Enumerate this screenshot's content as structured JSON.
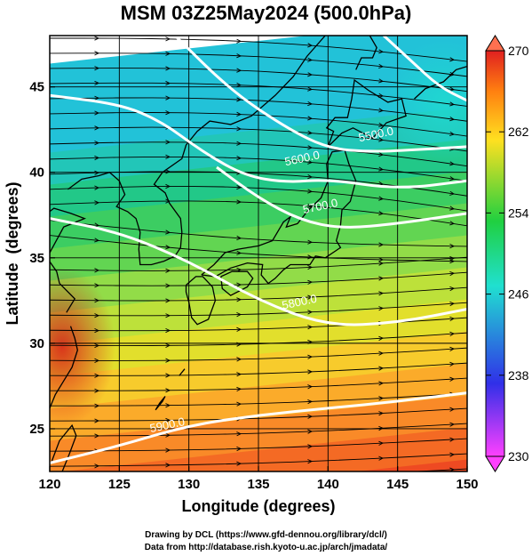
{
  "title": "MSM 03Z25May2024 (500.0hPa)",
  "credits": {
    "line1": "Drawing by DCL (https://www.gfd-dennou.org/library/dcl/)",
    "line2": "Data from http://database.rish.kyoto-u.ac.jp/arch/jmadata/"
  },
  "chart_data": {
    "type": "heatmap",
    "xlabel": "Longitude (degrees)",
    "ylabel": "Latitude  (degrees)",
    "xlim": [
      120,
      150
    ],
    "ylim": [
      22.5,
      48
    ],
    "x_ticks": [
      120,
      125,
      130,
      135,
      140,
      145,
      150
    ],
    "y_ticks": [
      25,
      30,
      35,
      40,
      45
    ],
    "grid": true,
    "colorbar": {
      "min": 230,
      "max": 270,
      "ticks": [
        230,
        238,
        246,
        254,
        262,
        270
      ],
      "colors": [
        "#ff40ff",
        "#2020e0",
        "#20e0d0",
        "#20d040",
        "#ffe020",
        "#ff8010",
        "#e02020"
      ]
    },
    "contours": [
      {
        "label": "5900.0",
        "points": [
          [
            120,
            23.0
          ],
          [
            125,
            24.0
          ],
          [
            130,
            25.2
          ],
          [
            135,
            25.8
          ],
          [
            140,
            26.2
          ],
          [
            145,
            26.6
          ],
          [
            150,
            27.1
          ]
        ]
      },
      {
        "label": "5800.0",
        "points": [
          [
            120,
            37.3
          ],
          [
            125,
            36.5
          ],
          [
            130,
            34.8
          ],
          [
            135,
            32.5
          ],
          [
            140,
            31.0
          ],
          [
            145,
            31.2
          ],
          [
            150,
            32.0
          ]
        ]
      },
      {
        "label": "5700.0",
        "points": [
          [
            132,
            40.3
          ],
          [
            135,
            38.5
          ],
          [
            138,
            37.2
          ],
          [
            141,
            36.7
          ],
          [
            145,
            37.0
          ],
          [
            150,
            37.6
          ]
        ]
      },
      {
        "label": "5600.0",
        "points": [
          [
            120,
            44.5
          ],
          [
            125,
            44.0
          ],
          [
            128,
            43.0
          ],
          [
            131,
            41.2
          ],
          [
            134,
            39.8
          ],
          [
            137,
            39.4
          ],
          [
            140,
            39.6
          ],
          [
            145,
            39.0
          ],
          [
            150,
            39.5
          ]
        ]
      },
      {
        "label": "5500.0",
        "points": [
          [
            129,
            48.0
          ],
          [
            133,
            44.8
          ],
          [
            137,
            42.6
          ],
          [
            140,
            41.4
          ],
          [
            143,
            41.2
          ],
          [
            146,
            41.3
          ],
          [
            150,
            41.5
          ]
        ]
      },
      {
        "label": "",
        "points": [
          [
            144,
            48.0
          ],
          [
            146,
            46.5
          ],
          [
            148,
            45.0
          ],
          [
            150,
            44.2
          ]
        ]
      }
    ],
    "contour_labels": [
      "5900.0",
      "5800.0",
      "5700.0",
      "5600.0",
      "5500.0"
    ]
  }
}
